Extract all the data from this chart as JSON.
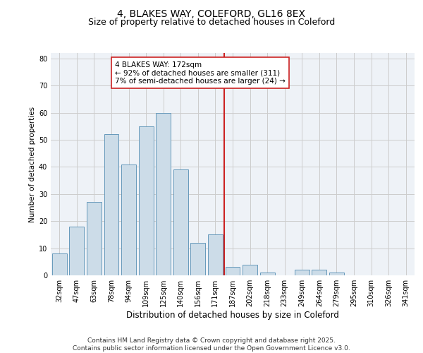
{
  "title1": "4, BLAKES WAY, COLEFORD, GL16 8EX",
  "title2": "Size of property relative to detached houses in Coleford",
  "xlabel": "Distribution of detached houses by size in Coleford",
  "ylabel": "Number of detached properties",
  "categories": [
    "32sqm",
    "47sqm",
    "63sqm",
    "78sqm",
    "94sqm",
    "109sqm",
    "125sqm",
    "140sqm",
    "156sqm",
    "171sqm",
    "187sqm",
    "202sqm",
    "218sqm",
    "233sqm",
    "249sqm",
    "264sqm",
    "279sqm",
    "295sqm",
    "310sqm",
    "326sqm",
    "341sqm"
  ],
  "values": [
    8,
    18,
    27,
    52,
    41,
    55,
    60,
    39,
    12,
    15,
    3,
    4,
    1,
    0,
    2,
    2,
    1,
    0,
    0,
    0,
    0
  ],
  "bar_color": "#ccdce8",
  "bar_edge_color": "#6699bb",
  "bar_width": 0.85,
  "vline_pos": 9.5,
  "vline_color": "#cc2222",
  "annotation_text": "4 BLAKES WAY: 172sqm\n← 92% of detached houses are smaller (311)\n7% of semi-detached houses are larger (24) →",
  "annotation_box_color": "#ffffff",
  "annotation_box_edge": "#cc2222",
  "ylim": [
    0,
    82
  ],
  "yticks": [
    0,
    10,
    20,
    30,
    40,
    50,
    60,
    70,
    80
  ],
  "grid_color": "#cccccc",
  "background_color": "#eef2f7",
  "footnote": "Contains HM Land Registry data © Crown copyright and database right 2025.\nContains public sector information licensed under the Open Government Licence v3.0.",
  "title1_fontsize": 10,
  "title2_fontsize": 9,
  "xlabel_fontsize": 8.5,
  "ylabel_fontsize": 7.5,
  "tick_fontsize": 7,
  "annotation_fontsize": 7.5,
  "footnote_fontsize": 6.5
}
